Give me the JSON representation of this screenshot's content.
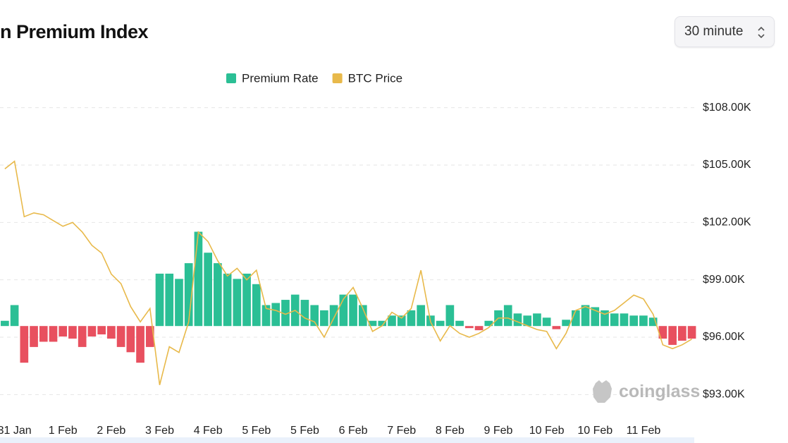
{
  "header": {
    "title": "n Premium Index",
    "interval": "30 minute"
  },
  "watermark": "coinglass",
  "chart_data": {
    "type": "bar",
    "legend": "top",
    "grid": true,
    "x": [
      -0.2,
      0,
      0.2,
      0.4,
      0.6,
      0.8,
      1.0,
      1.2,
      1.4,
      1.6,
      1.8,
      2.0,
      2.2,
      2.4,
      2.6,
      2.8,
      3.0,
      3.2,
      3.4,
      3.6,
      3.8,
      4.0,
      4.2,
      4.4,
      4.6,
      4.8,
      5.0,
      5.2,
      5.4,
      5.6,
      5.8,
      6.0,
      6.2,
      6.4,
      6.6,
      6.8,
      7.0,
      7.2,
      7.4,
      7.6,
      7.8,
      8.0,
      8.2,
      8.4,
      8.6,
      8.8,
      9.0,
      9.2,
      9.4,
      9.6,
      9.8,
      10.0,
      10.2,
      10.4,
      10.6,
      10.8,
      11.0,
      11.2,
      11.4,
      11.6,
      11.8,
      12.0,
      12.2,
      12.4,
      12.6,
      12.8,
      13.0,
      13.2,
      13.4,
      13.6,
      13.8,
      14.0
    ],
    "xlim": [
      -0.3,
      14.05
    ],
    "xticks": [
      {
        "value": 0,
        "label": "31 Jan"
      },
      {
        "value": 1,
        "label": "1 Feb"
      },
      {
        "value": 2,
        "label": "2 Feb"
      },
      {
        "value": 3,
        "label": "3 Feb"
      },
      {
        "value": 4,
        "label": "4 Feb"
      },
      {
        "value": 5,
        "label": "5 Feb"
      },
      {
        "value": 6,
        "label": "5 Feb"
      },
      {
        "value": 7,
        "label": "6 Feb"
      },
      {
        "value": 8,
        "label": "7 Feb"
      },
      {
        "value": 9,
        "label": "8 Feb"
      },
      {
        "value": 10,
        "label": "9 Feb"
      },
      {
        "value": 11,
        "label": "10 Feb"
      },
      {
        "value": 12,
        "label": "10 Feb"
      },
      {
        "value": 13,
        "label": "11 Feb"
      }
    ],
    "ylim": [
      92200,
      108800
    ],
    "yticks": [
      {
        "value": 93000,
        "label": "$93.00K"
      },
      {
        "value": 96000,
        "label": "$96.00K"
      },
      {
        "value": 99000,
        "label": "$99.00K"
      },
      {
        "value": 102000,
        "label": "$102.00K"
      },
      {
        "value": 105000,
        "label": "$105.00K"
      },
      {
        "value": 108000,
        "label": "$108.00K"
      }
    ],
    "y2lim": [
      -0.08,
      0.223
    ],
    "series": [
      {
        "name": "Premium Rate",
        "type": "bar",
        "axis": "y2",
        "color": "#2bbf95",
        "negative_color": "#e8505f",
        "values": [
          0.005,
          0.02,
          -0.035,
          -0.02,
          -0.015,
          -0.015,
          -0.01,
          -0.012,
          -0.02,
          -0.01,
          -0.008,
          -0.012,
          -0.02,
          -0.025,
          -0.035,
          -0.02,
          0.05,
          0.05,
          0.045,
          0.06,
          0.09,
          0.07,
          0.06,
          0.05,
          0.045,
          0.05,
          0.04,
          0.02,
          0.022,
          0.025,
          0.03,
          0.025,
          0.02,
          0.015,
          0.02,
          0.03,
          0.03,
          0.02,
          0.005,
          0.005,
          0.01,
          0.01,
          0.015,
          0.02,
          0.01,
          0.005,
          0.02,
          0.005,
          -0.002,
          -0.004,
          0.005,
          0.015,
          0.02,
          0.012,
          0.01,
          0.012,
          0.008,
          -0.003,
          0.006,
          0.015,
          0.02,
          0.018,
          0.015,
          0.012,
          0.012,
          0.01,
          0.01,
          0.008,
          -0.012,
          -0.018,
          -0.014,
          -0.012
        ]
      },
      {
        "name": "BTC Price",
        "type": "line",
        "color": "#e8b94a",
        "values": [
          104800,
          105200,
          102300,
          102500,
          102400,
          102100,
          101800,
          102000,
          101500,
          100800,
          100400,
          99300,
          98800,
          97600,
          96800,
          97500,
          93500,
          95500,
          95200,
          96800,
          101500,
          101000,
          100000,
          99200,
          99600,
          99000,
          99500,
          97500,
          97400,
          97200,
          97400,
          97000,
          96800,
          96000,
          97000,
          98000,
          98600,
          97500,
          96300,
          96600,
          97300,
          97000,
          97500,
          99500,
          96800,
          95800,
          96600,
          96200,
          96000,
          96200,
          96500,
          97000,
          97000,
          96800,
          96600,
          96400,
          96300,
          95400,
          96200,
          97400,
          97600,
          97400,
          97200,
          97400,
          97800,
          98200,
          98000,
          97200,
          95600,
          95400,
          95600,
          95900
        ]
      }
    ]
  }
}
